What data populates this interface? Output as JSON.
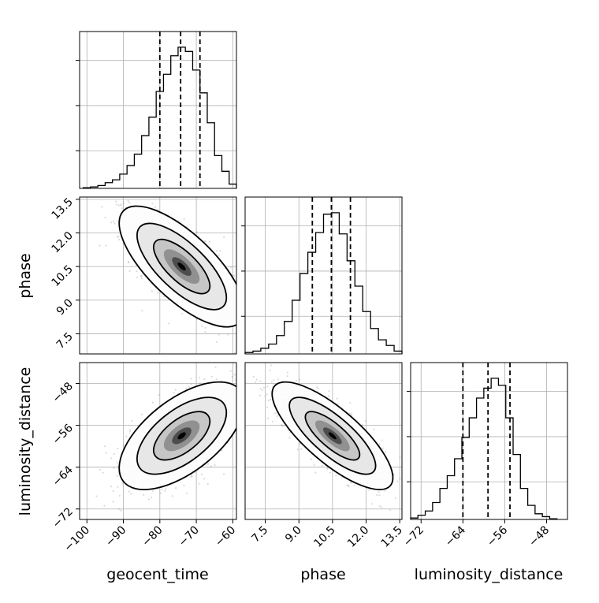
{
  "chart_data": {
    "type": "corner",
    "parameters": [
      {
        "name": "geocent_time",
        "range": [
          -102,
          -59
        ],
        "ticks": [
          -100,
          -90,
          -80,
          -70,
          -60
        ],
        "tick_labels": [
          "−100",
          "−90",
          "−80",
          "−70",
          "−60"
        ],
        "quantiles": [
          -80,
          -74.3,
          -69
        ],
        "hist": {
          "edges": [
            -101,
            -99,
            -97,
            -95,
            -93,
            -91,
            -89,
            -87,
            -85,
            -83,
            -81,
            -79,
            -77,
            -75,
            -73,
            -71,
            -69,
            -67,
            -65,
            -63,
            -61,
            -59
          ],
          "counts": [
            0.005,
            0.01,
            0.02,
            0.04,
            0.06,
            0.1,
            0.16,
            0.24,
            0.37,
            0.5,
            0.68,
            0.8,
            0.93,
            0.99,
            0.96,
            0.83,
            0.67,
            0.46,
            0.23,
            0.12,
            0.03
          ]
        }
      },
      {
        "name": "phase",
        "range": [
          6.6,
          13.6
        ],
        "ticks": [
          7.5,
          9.0,
          10.5,
          12.0,
          13.5
        ],
        "tick_labels": [
          "7.5",
          "9.0",
          "10.5",
          "12.0",
          "13.5"
        ],
        "quantiles": [
          9.6,
          10.45,
          11.3
        ],
        "hist": {
          "edges": [
            6.6,
            6.95,
            7.3,
            7.65,
            8.0,
            8.35,
            8.7,
            9.05,
            9.4,
            9.75,
            10.1,
            10.45,
            10.8,
            11.15,
            11.5,
            11.85,
            12.2,
            12.55,
            12.9,
            13.25,
            13.6
          ],
          "counts": [
            0.01,
            0.02,
            0.04,
            0.07,
            0.13,
            0.23,
            0.38,
            0.57,
            0.72,
            0.86,
            0.99,
            1.0,
            0.85,
            0.66,
            0.48,
            0.3,
            0.18,
            0.1,
            0.06,
            0.02
          ]
        }
      },
      {
        "name": "luminosity_distance",
        "range": [
          -74,
          -44
        ],
        "ticks": [
          -72,
          -64,
          -56,
          -48
        ],
        "tick_labels": [
          "−72",
          "−64",
          "−56",
          "−48"
        ],
        "quantiles": [
          -64,
          -59.2,
          -55
        ],
        "hist": {
          "edges": [
            -74,
            -72.6,
            -71.2,
            -69.8,
            -68.4,
            -67,
            -65.6,
            -64.2,
            -62.8,
            -61.4,
            -60,
            -58.6,
            -57.2,
            -55.8,
            -54.4,
            -53,
            -51.6,
            -50.2,
            -48.8,
            -47.4,
            -46
          ],
          "counts": [
            0.01,
            0.03,
            0.06,
            0.12,
            0.22,
            0.31,
            0.43,
            0.58,
            0.72,
            0.86,
            0.93,
            1.0,
            0.95,
            0.72,
            0.46,
            0.22,
            0.1,
            0.04,
            0.02,
            0.005
          ]
        }
      }
    ],
    "pairs": [
      {
        "x_param": "geocent_time",
        "y_param": "phase",
        "mean": [
          -74,
          10.5
        ],
        "sd": [
          7,
          1.1
        ],
        "rho": -0.72
      },
      {
        "x_param": "geocent_time",
        "y_param": "luminosity_distance",
        "mean": [
          -74,
          -58
        ],
        "sd": [
          7,
          4.2
        ],
        "rho": 0.6
      },
      {
        "x_param": "phase",
        "y_param": "luminosity_distance",
        "mean": [
          10.5,
          -58
        ],
        "sd": [
          1.1,
          4.2
        ],
        "rho": -0.78
      }
    ],
    "grid": true,
    "xlabels": [
      "geocent_time",
      "phase",
      "luminosity_distance"
    ],
    "ylabels": [
      "phase",
      "luminosity_distance"
    ]
  }
}
